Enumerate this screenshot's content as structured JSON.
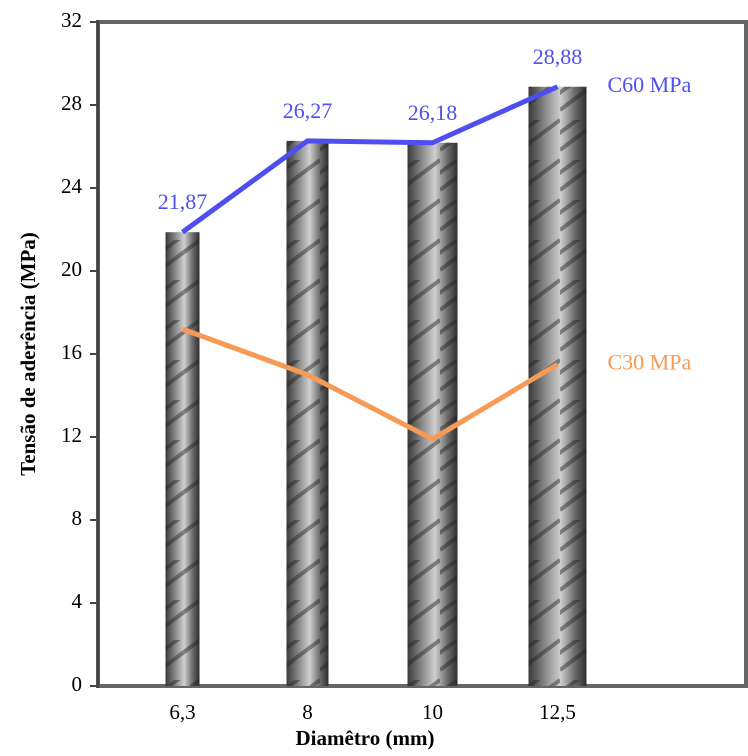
{
  "chart_data": {
    "type": "line",
    "x_label": "Diamêtro (mm)",
    "y_label": "Tensão de aderência (MPa)",
    "categories": [
      "6,3",
      "8",
      "10",
      "12,5"
    ],
    "series": [
      {
        "name": "C60 MPa",
        "color": "#4f4ff0",
        "values": [
          21.87,
          26.27,
          26.18,
          28.88
        ],
        "value_labels": [
          "21,87",
          "26,27",
          "26,18",
          "28,88"
        ]
      },
      {
        "name": "C30 MPa",
        "color": "#f79a55",
        "values": [
          17.2,
          15,
          11.9,
          15.5
        ]
      }
    ],
    "ylim": [
      0,
      32
    ],
    "yticks": [
      0,
      4,
      8,
      12,
      16,
      20,
      24,
      28,
      32
    ]
  }
}
